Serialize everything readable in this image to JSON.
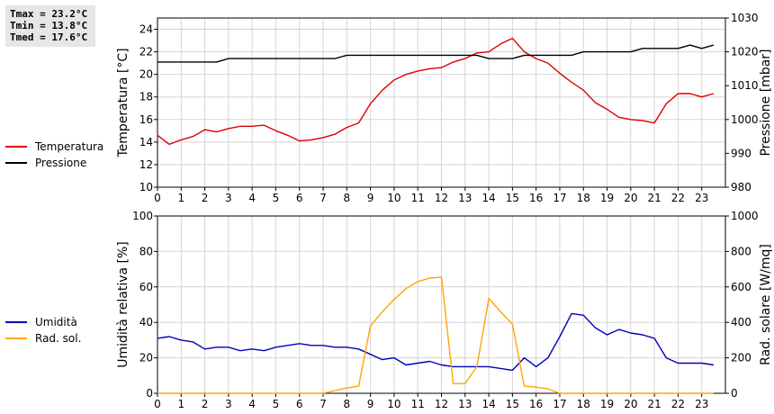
{
  "stats": {
    "tmax": "Tmax = 23.2°C",
    "tmin": "Tmin = 13.8°C",
    "tmed": "Tmed = 17.6°C"
  },
  "colors": {
    "temperature": "#dd0000",
    "pressure": "#000000",
    "humidity": "#0000bb",
    "radiation": "#ffa500",
    "grid": "#d4d4d4"
  },
  "chart_data": [
    {
      "type": "line",
      "legend_position": "left",
      "grid": true,
      "x_ticks": [
        0,
        1,
        2,
        3,
        4,
        5,
        6,
        7,
        8,
        9,
        10,
        11,
        12,
        13,
        14,
        15,
        16,
        17,
        18,
        19,
        20,
        21,
        22,
        23
      ],
      "xlim": [
        0,
        24
      ],
      "ylabel_left": "Temperatura [°C]",
      "ylim_left": [
        10,
        25
      ],
      "y_ticks_left": [
        10,
        12,
        14,
        16,
        18,
        20,
        22,
        24
      ],
      "ylabel_right": "Pressione [mbar]",
      "ylim_right": [
        980,
        1030
      ],
      "y_ticks_right": [
        980,
        990,
        1000,
        1010,
        1020,
        1030
      ],
      "series": [
        {
          "name": "Temperatura",
          "axis": "left",
          "color": "#dd0000",
          "x": [
            0,
            0.5,
            1,
            1.5,
            2,
            2.5,
            3,
            3.5,
            4,
            4.5,
            5,
            5.5,
            6,
            6.5,
            7,
            7.5,
            8,
            8.5,
            9,
            9.5,
            10,
            10.5,
            11,
            11.5,
            12,
            12.5,
            13,
            13.5,
            14,
            14.5,
            15,
            15.5,
            16,
            16.5,
            17,
            17.5,
            18,
            18.5,
            19,
            19.5,
            20,
            20.5,
            21,
            21.5,
            22,
            22.5,
            23,
            23.5
          ],
          "y": [
            14.6,
            13.8,
            14.2,
            14.5,
            15.1,
            14.9,
            15.2,
            15.4,
            15.4,
            15.5,
            15.0,
            14.6,
            14.1,
            14.2,
            14.4,
            14.7,
            15.3,
            15.7,
            17.4,
            18.6,
            19.5,
            20.0,
            20.3,
            20.5,
            20.6,
            21.1,
            21.4,
            21.9,
            22.0,
            22.7,
            23.2,
            22.0,
            21.4,
            21.0,
            20.1,
            19.3,
            18.6,
            17.5,
            16.9,
            16.2,
            16.0,
            15.9,
            15.7,
            17.4,
            18.3,
            18.3,
            18.0,
            18.3
          ]
        },
        {
          "name": "Pressione",
          "axis": "right",
          "color": "#000000",
          "x": [
            0,
            0.5,
            1,
            1.5,
            2,
            2.5,
            3,
            3.5,
            4,
            4.5,
            5,
            5.5,
            6,
            6.5,
            7,
            7.5,
            8,
            8.5,
            9,
            9.5,
            10,
            10.5,
            11,
            11.5,
            12,
            12.5,
            13,
            13.5,
            14,
            14.5,
            15,
            15.5,
            16,
            16.5,
            17,
            17.5,
            18,
            18.5,
            19,
            19.5,
            20,
            20.5,
            21,
            21.5,
            22,
            22.5,
            23,
            23.5
          ],
          "y": [
            1017,
            1017,
            1017,
            1017,
            1017,
            1017,
            1018,
            1018,
            1018,
            1018,
            1018,
            1018,
            1018,
            1018,
            1018,
            1018,
            1019,
            1019,
            1019,
            1019,
            1019,
            1019,
            1019,
            1019,
            1019,
            1019,
            1019,
            1019,
            1018,
            1018,
            1018,
            1019,
            1019,
            1019,
            1019,
            1019,
            1020,
            1020,
            1020,
            1020,
            1020,
            1021,
            1021,
            1021,
            1021,
            1022,
            1021,
            1022
          ]
        }
      ]
    },
    {
      "type": "line",
      "legend_position": "left",
      "grid": true,
      "x_ticks": [
        0,
        1,
        2,
        3,
        4,
        5,
        6,
        7,
        8,
        9,
        10,
        11,
        12,
        13,
        14,
        15,
        16,
        17,
        18,
        19,
        20,
        21,
        22,
        23
      ],
      "xlim": [
        0,
        24
      ],
      "ylabel_left": "Umidità relativa [%]",
      "ylim_left": [
        0,
        100
      ],
      "y_ticks_left": [
        0,
        20,
        40,
        60,
        80,
        100
      ],
      "ylabel_right": "Rad. solare [W/mq]",
      "ylim_right": [
        0,
        1000
      ],
      "y_ticks_right": [
        0,
        200,
        400,
        600,
        800,
        1000
      ],
      "series": [
        {
          "name": "Umidità",
          "axis": "left",
          "color": "#0000bb",
          "x": [
            0,
            0.5,
            1,
            1.5,
            2,
            2.5,
            3,
            3.5,
            4,
            4.5,
            5,
            5.5,
            6,
            6.5,
            7,
            7.5,
            8,
            8.5,
            9,
            9.5,
            10,
            10.5,
            11,
            11.5,
            12,
            12.5,
            13,
            13.5,
            14,
            14.5,
            15,
            15.5,
            16,
            16.5,
            17,
            17.5,
            18,
            18.5,
            19,
            19.5,
            20,
            20.5,
            21,
            21.5,
            22,
            22.5,
            23,
            23.5
          ],
          "y": [
            31,
            32,
            30,
            29,
            25,
            26,
            26,
            24,
            25,
            24,
            26,
            27,
            28,
            27,
            27,
            26,
            26,
            25,
            22,
            19,
            20,
            16,
            17,
            18,
            16,
            15,
            15,
            15,
            15,
            14,
            13,
            20,
            15,
            20,
            32,
            45,
            44,
            37,
            33,
            36,
            34,
            33,
            31,
            20,
            17,
            17,
            17,
            16
          ]
        },
        {
          "name": "Rad. sol.",
          "axis": "right",
          "color": "#ffa500",
          "x": [
            0,
            0.5,
            1,
            1.5,
            2,
            2.5,
            3,
            3.5,
            4,
            4.5,
            5,
            5.5,
            6,
            6.5,
            7,
            7.5,
            8,
            8.5,
            9,
            9.5,
            10,
            10.5,
            11,
            11.5,
            12,
            12.5,
            13,
            13.5,
            14,
            14.5,
            15,
            15.5,
            16,
            16.5,
            17,
            17.5,
            18,
            18.5,
            19,
            19.5,
            20,
            20.5,
            21,
            21.5,
            22,
            22.5,
            23,
            23.5
          ],
          "y": [
            0,
            0,
            0,
            0,
            0,
            0,
            0,
            0,
            0,
            0,
            0,
            0,
            0,
            0,
            0,
            15,
            30,
            40,
            380,
            460,
            530,
            590,
            630,
            650,
            655,
            55,
            55,
            150,
            535,
            460,
            390,
            40,
            35,
            25,
            0,
            0,
            0,
            0,
            0,
            0,
            0,
            0,
            0,
            0,
            0,
            0,
            0,
            0
          ]
        }
      ]
    }
  ]
}
